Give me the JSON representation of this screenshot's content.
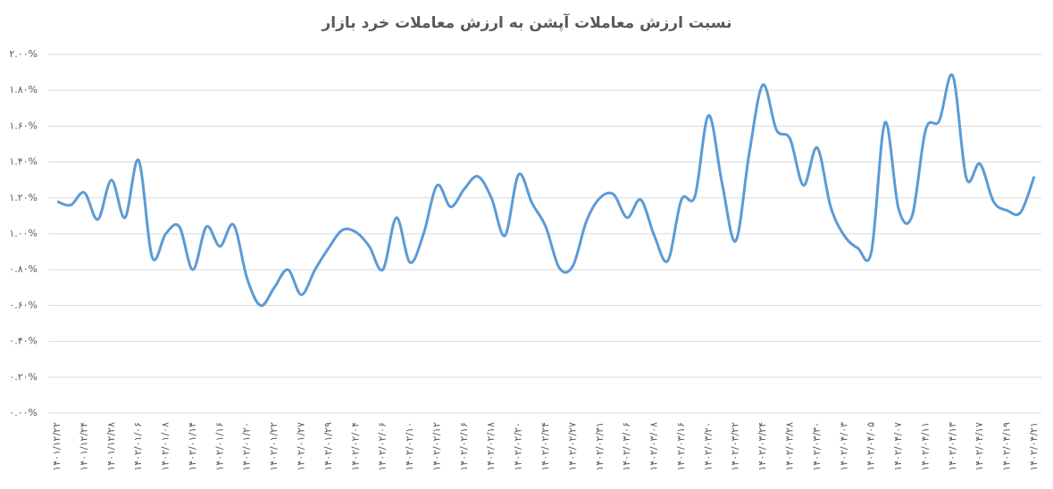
{
  "chart_data": {
    "type": "line",
    "title": "نسبت ارزش معاملات آپشن به ارزش معاملات خرد بازار",
    "categories": [
      "۱۴۰۱/۱۲/۲۲",
      null,
      "۱۴۰۱/۱۲/۲۴",
      null,
      "۱۴۰۱/۱۲/۲۸",
      null,
      "۱۴۰۲/۰۱/۰۶",
      null,
      "۱۴۰۲/۰۱/۰۸",
      null,
      "۱۴۰۲/۰۱/۱۴",
      null,
      "۱۴۰۲/۰۱/۱۶",
      null,
      "۱۴۰۲/۰۱/۲۰",
      null,
      "۱۴۰۲/۰۱/۲۲",
      null,
      "۱۴۰۲/۰۱/۲۷",
      null,
      "۱۴۰۲/۰۱/۲۹",
      null,
      "۱۴۰۲/۰۲/۰۴",
      null,
      "۱۴۰۲/۰۲/۰۶",
      null,
      "۱۴۰۲/۰۲/۱۰",
      null,
      "۱۴۰۲/۰۲/۱۲",
      null,
      "۱۴۰۲/۰۲/۱۶",
      null,
      "۱۴۰۲/۰۲/۱۸",
      null,
      "۱۴۰۲/۰۲/۲۰",
      null,
      "۱۴۰۲/۰۲/۲۴",
      null,
      "۱۴۰۲/۰۲/۲۷",
      null,
      "۱۴۰۲/۰۲/۳۱",
      null,
      "۱۴۰۲/۰۳/۰۶",
      null,
      "۱۴۰۲/۰۳/۰۸",
      null,
      "۱۴۰۲/۰۳/۱۶",
      null,
      "۱۴۰۲/۰۳/۲۰",
      null,
      "۱۴۰۲/۰۳/۲۲",
      null,
      "۱۴۰۲/۰۳/۲۴",
      null,
      "۱۴۰۲/۰۳/۲۸",
      null,
      "۱۴۰۲/۰۳/۳۰",
      null,
      "۱۴۰۲/۰۴/۰۳",
      null,
      "۱۴۰۲/۰۴/۰۵",
      null,
      "۱۴۰۲/۰۴/۰۷",
      null,
      "۱۴۰۲/۰۴/۱۱",
      null,
      "۱۴۰۲/۰۴/۱۳",
      null,
      "۱۴۰۲/۰۴/۱۷",
      null,
      "۱۴۰۲/۰۴/۱۹",
      null,
      "۱۴۰۲/۰۴/۲۱"
    ],
    "series": [
      {
        "color": "#5b9bd5",
        "values": [
          1.18,
          1.16,
          1.23,
          1.08,
          1.3,
          1.09,
          1.41,
          0.87,
          1.0,
          1.04,
          0.8,
          1.04,
          0.93,
          1.05,
          0.75,
          0.6,
          0.7,
          0.8,
          0.66,
          0.8,
          0.92,
          1.02,
          1.01,
          0.93,
          0.8,
          1.09,
          0.84,
          1.0,
          1.27,
          1.15,
          1.25,
          1.32,
          1.2,
          0.99,
          1.33,
          1.17,
          1.04,
          0.81,
          0.82,
          1.07,
          1.2,
          1.22,
          1.09,
          1.19,
          0.99,
          0.85,
          1.19,
          1.21,
          1.66,
          1.28,
          0.96,
          1.45,
          1.83,
          1.58,
          1.53,
          1.27,
          1.48,
          1.15,
          0.99,
          0.92,
          0.9,
          1.62,
          1.14,
          1.1,
          1.58,
          1.63,
          1.88,
          1.31,
          1.39,
          1.18,
          1.13,
          1.12,
          1.32
        ]
      }
    ],
    "ylim": [
      0,
      2
    ],
    "yticks": [
      {
        "value": 0,
        "label": "۰.۰۰%"
      },
      {
        "value": 0.2,
        "label": "۰.۲۰%"
      },
      {
        "value": 0.4,
        "label": "۰.۴۰%"
      },
      {
        "value": 0.6,
        "label": "۰.۶۰%"
      },
      {
        "value": 0.8,
        "label": "۰.۸۰%"
      },
      {
        "value": 1,
        "label": "۱.۰۰%"
      },
      {
        "value": 1.2,
        "label": "۱.۲۰%"
      },
      {
        "value": 1.4,
        "label": "۱.۴۰%"
      },
      {
        "value": 1.6,
        "label": "۱.۶۰%"
      },
      {
        "value": 1.8,
        "label": "۱.۸۰%"
      },
      {
        "value": 2,
        "label": "۲.۰۰%"
      }
    ],
    "grid": true
  }
}
